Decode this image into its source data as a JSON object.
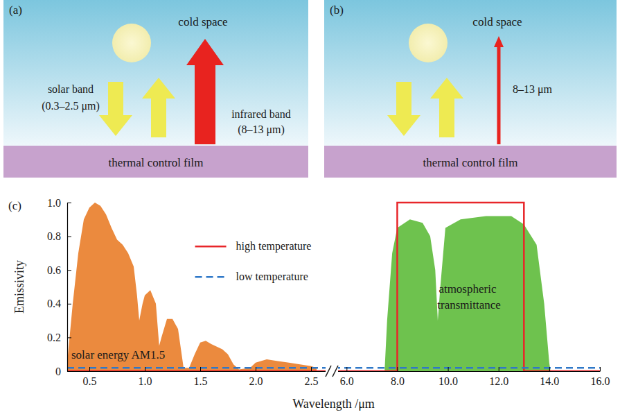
{
  "diagrams": [
    {
      "letter": "(a)",
      "space_label": "cold space",
      "solar_label": [
        "solar band",
        "(0.3–2.5 μm)"
      ],
      "infrared_label": [
        "infrared band",
        "(8–13 μm)"
      ],
      "film_label": "thermal control film"
    },
    {
      "letter": "(b)",
      "space_label": "cold space",
      "infrared_label": [
        "8–13 μm"
      ],
      "film_label": "thermal control film"
    }
  ],
  "chart_data": {
    "type": "line",
    "panel_label": "(c)",
    "x_label": "Wavelength /μm",
    "y_label": "Emissivity",
    "xlim": [
      [
        0.3,
        2.6
      ],
      [
        5.8,
        16
      ]
    ],
    "xticks": [
      0.5,
      {
        "value": 1,
        "label": "1.0"
      },
      1.5,
      {
        "value": 2,
        "label": "2.0"
      },
      2.5,
      {
        "value": 6,
        "label": "6.0"
      },
      {
        "value": 8,
        "label": "8.0"
      },
      {
        "value": 10,
        "label": "10.0"
      },
      {
        "value": 12,
        "label": "12.0"
      },
      {
        "value": 14,
        "label": "14.0"
      },
      {
        "value": 16,
        "label": "16.0"
      }
    ],
    "ylim": [
      0,
      1
    ],
    "yticks": [
      0,
      0.2,
      0.4,
      0.6,
      0.8,
      {
        "value": 1,
        "label": "1.0"
      }
    ],
    "grid": false,
    "legend": "upper left",
    "series": [
      {
        "name": "solar energy AM1.5",
        "type": "area",
        "color": "#eb8a3e",
        "x": [
          0.3,
          0.35,
          0.4,
          0.45,
          0.5,
          0.55,
          0.6,
          0.65,
          0.7,
          0.75,
          0.8,
          0.85,
          0.9,
          0.93,
          0.95,
          0.98,
          1.0,
          1.05,
          1.1,
          1.13,
          1.15,
          1.2,
          1.25,
          1.3,
          1.35,
          1.4,
          1.45,
          1.5,
          1.55,
          1.6,
          1.7,
          1.75,
          1.8,
          1.85,
          1.95,
          2.0,
          2.1,
          2.2,
          2.3,
          2.4,
          2.5,
          2.55
        ],
        "values": [
          0.05,
          0.4,
          0.7,
          0.9,
          0.97,
          1.0,
          0.98,
          0.93,
          0.85,
          0.78,
          0.75,
          0.7,
          0.62,
          0.45,
          0.3,
          0.4,
          0.45,
          0.48,
          0.4,
          0.15,
          0.2,
          0.31,
          0.31,
          0.25,
          0.02,
          0.02,
          0.1,
          0.17,
          0.18,
          0.16,
          0.13,
          0.1,
          0.04,
          0.01,
          0.02,
          0.05,
          0.07,
          0.06,
          0.05,
          0.04,
          0.03,
          0.02
        ]
      },
      {
        "name": "atmospheric transmittance",
        "type": "area",
        "color": "#6ec24e",
        "x": [
          7.5,
          7.6,
          7.8,
          8.0,
          8.5,
          9.0,
          9.3,
          9.5,
          9.6,
          9.7,
          9.9,
          10.5,
          11.5,
          12.5,
          13.0,
          13.5,
          13.8,
          14.0,
          14.05
        ],
        "values": [
          0,
          0.3,
          0.7,
          0.85,
          0.9,
          0.88,
          0.8,
          0.6,
          0.3,
          0.5,
          0.85,
          0.9,
          0.92,
          0.92,
          0.87,
          0.75,
          0.4,
          0.05,
          0
        ]
      },
      {
        "name": "high temperature",
        "type": "line",
        "color": "#e8262a",
        "line_style": "solid",
        "x": [
          0.3,
          8,
          8,
          13,
          13,
          16
        ],
        "values": [
          0,
          0,
          1,
          1,
          0,
          0
        ]
      },
      {
        "name": "low temperature",
        "type": "line",
        "color": "#2f78c8",
        "line_style": "dashed",
        "x": [
          0.3,
          16
        ],
        "values": [
          0.02,
          0.02
        ]
      }
    ]
  }
}
